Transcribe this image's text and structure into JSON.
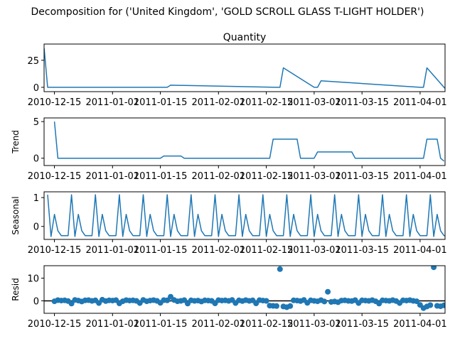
{
  "figure": {
    "suptitle": "Decomposition for ('United Kingdom', 'GOLD SCROLL GLASS T-LIGHT HOLDER')"
  },
  "colors": {
    "line": "#1f77b4",
    "marker": "#1f77b4",
    "baseline": "#000000",
    "axis": "#000000"
  },
  "chart_data": [
    {
      "type": "line",
      "title": "Quantity",
      "ylabel": "",
      "xlim": [
        "2010-12-15",
        "2011-04-05"
      ],
      "ylim": [
        -4,
        40
      ],
      "yticks": [
        0,
        25
      ],
      "xticks": [
        "2010-12-15",
        "2011-01-01",
        "2011-01-15",
        "2011-02-01",
        "2011-02-15",
        "2011-03-01",
        "2011-03-15",
        "2011-04-01"
      ],
      "series": [
        {
          "x": [
            "2010-12-12",
            "2010-12-13",
            "2011-01-17",
            "2011-01-18",
            "2011-02-18",
            "2011-02-19",
            "2011-02-20",
            "2011-03-01",
            "2011-03-02",
            "2011-03-03",
            "2011-04-01",
            "2011-04-02",
            "2011-04-03",
            "2011-04-08",
            "2011-04-09"
          ],
          "y": [
            36,
            0,
            0,
            2,
            0,
            0,
            18,
            0,
            0,
            6,
            0,
            0,
            18,
            0,
            -3
          ]
        }
      ]
    },
    {
      "type": "line",
      "title": "",
      "ylabel": "Trend",
      "xlim": [
        "2010-12-15",
        "2011-04-05"
      ],
      "ylim": [
        -1,
        5.5
      ],
      "yticks": [
        0,
        5
      ],
      "xticks": [
        "2010-12-15",
        "2011-01-01",
        "2011-01-15",
        "2011-02-01",
        "2011-02-15",
        "2011-03-01",
        "2011-03-15",
        "2011-04-01"
      ],
      "series": [
        {
          "x": [
            "2010-12-15",
            "2010-12-16",
            "2011-01-15",
            "2011-01-16",
            "2011-01-21",
            "2011-01-22",
            "2011-02-16",
            "2011-02-17",
            "2011-02-20",
            "2011-02-21",
            "2011-02-24",
            "2011-02-25",
            "2011-03-01",
            "2011-03-02",
            "2011-03-05",
            "2011-03-06",
            "2011-03-12",
            "2011-03-13",
            "2011-04-02",
            "2011-04-03",
            "2011-04-06",
            "2011-04-07",
            "2011-04-08"
          ],
          "y": [
            5,
            0,
            0,
            0.3,
            0.3,
            0,
            0,
            2.6,
            2.6,
            2.6,
            2.6,
            0,
            0,
            0.85,
            0.85,
            0.85,
            0.85,
            0,
            0,
            2.6,
            2.6,
            0,
            -0.4
          ]
        }
      ]
    },
    {
      "type": "line",
      "title": "",
      "ylabel": "Seasonal",
      "xlim": [
        "2010-12-15",
        "2011-04-05"
      ],
      "ylim": [
        -0.45,
        1.2
      ],
      "yticks": [
        0,
        1
      ],
      "xticks": [
        "2010-12-15",
        "2011-01-01",
        "2011-01-15",
        "2011-02-01",
        "2011-02-15",
        "2011-03-01",
        "2011-03-15",
        "2011-04-01"
      ],
      "period_days": 7,
      "pattern": [
        1.1,
        -0.35,
        0.42,
        -0.15,
        -0.32,
        -0.32,
        -0.32
      ],
      "start": "2010-12-13",
      "end": "2011-04-09"
    },
    {
      "type": "scatter",
      "title": "",
      "ylabel": "Resid",
      "xlim": [
        "2010-12-15",
        "2011-04-05"
      ],
      "ylim": [
        -5.5,
        15.5
      ],
      "yticks": [
        0,
        10
      ],
      "xticks": [
        "2010-12-15",
        "2011-01-01",
        "2011-01-15",
        "2011-02-01",
        "2011-02-15",
        "2011-03-01",
        "2011-03-15",
        "2011-04-01"
      ],
      "baseline": 0,
      "start": "2010-12-15",
      "values": [
        -0.2,
        0.3,
        0.1,
        0.2,
        -0.1,
        -1.2,
        0.4,
        0.1,
        -0.3,
        0.2,
        0.3,
        0.0,
        0.2,
        -1.0,
        0.5,
        -0.1,
        0.2,
        0.1,
        0.3,
        -1.1,
        -0.2,
        0.3,
        0.1,
        0.2,
        0.0,
        -1.0,
        0.4,
        -0.2,
        0.1,
        0.3,
        0.0,
        -0.9,
        0.3,
        0.2,
        1.8,
        0.4,
        -0.2,
        0.0,
        0.3,
        -1.2,
        0.2,
        0.0,
        0.1,
        -0.3,
        0.2,
        0.1,
        0.0,
        -1.1,
        0.3,
        0.1,
        0.2,
        0.0,
        0.4,
        -1.0,
        0.2,
        -0.1,
        0.3,
        0.0,
        0.2,
        -1.1,
        0.3,
        0.1,
        0.0,
        -2.1,
        -2.2,
        -2.3,
        14,
        -2.5,
        -2.8,
        -2.3,
        0.2,
        0.1,
        -0.1,
        0.4,
        -0.9,
        0.2,
        0.0,
        -0.2,
        0.3,
        -0.3,
        4.0,
        -0.5,
        -0.3,
        -0.6,
        0.1,
        0.2,
        0.0,
        -0.1,
        0.3,
        -1.0,
        0.2,
        0.1,
        0.0,
        0.3,
        -0.2,
        -1.2,
        0.2,
        0.1,
        0.0,
        0.3,
        -0.1,
        -1.0,
        0.2,
        0.1,
        0.3,
        0.0,
        -0.2,
        -1.8,
        -3.2,
        -2.5,
        -1.9,
        14.8,
        -2.2,
        -2.4,
        -2.0,
        0.4,
        -0.3,
        -0.6
      ]
    }
  ]
}
